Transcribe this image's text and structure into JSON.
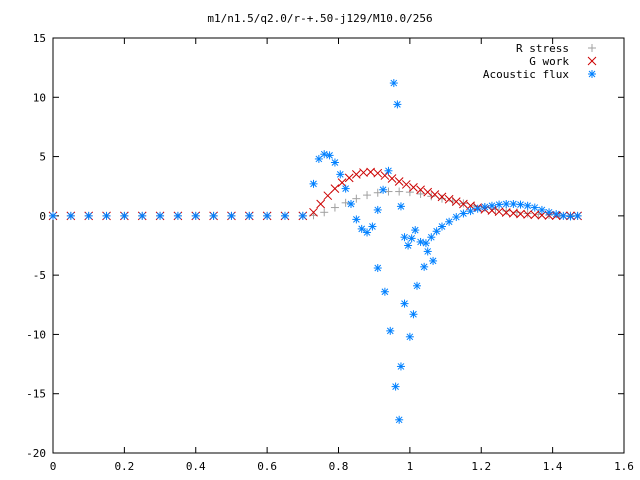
{
  "chart_data": {
    "type": "scatter",
    "title": "m1/n1.5/q2.0/r-+.50-j129/M10.0/256",
    "xlabel": "",
    "ylabel": "",
    "xlim": [
      0,
      1.6
    ],
    "ylim": [
      -20,
      15
    ],
    "x_ticks": [
      "0",
      "0.2",
      "0.4",
      "0.6",
      "0.8",
      "1",
      "1.2",
      "1.4",
      "1.6"
    ],
    "y_ticks": [
      "15",
      "10",
      "5",
      "0",
      "-5",
      "-10",
      "-15",
      "-20"
    ],
    "grid": false,
    "legend_position": "top-right",
    "series": [
      {
        "name": "R stress",
        "marker": "plus",
        "color": "#a0a0a0",
        "x": [
          0.0,
          0.05,
          0.1,
          0.15,
          0.2,
          0.25,
          0.3,
          0.35,
          0.4,
          0.45,
          0.5,
          0.55,
          0.6,
          0.65,
          0.7,
          0.73,
          0.76,
          0.79,
          0.82,
          0.85,
          0.88,
          0.91,
          0.94,
          0.97,
          1.0,
          1.03,
          1.06,
          1.09,
          1.12,
          1.15,
          1.18,
          1.21,
          1.24,
          1.27,
          1.3,
          1.33,
          1.36,
          1.39,
          1.42,
          1.45,
          1.47
        ],
        "y": [
          0,
          0,
          0,
          0,
          0,
          0,
          0,
          0,
          0,
          0,
          0,
          0,
          0,
          0,
          0,
          0.05,
          0.3,
          0.7,
          1.1,
          1.45,
          1.75,
          1.95,
          2.05,
          2.05,
          2.0,
          1.85,
          1.65,
          1.45,
          1.25,
          1.05,
          0.85,
          0.7,
          0.55,
          0.42,
          0.3,
          0.2,
          0.12,
          0.07,
          0.04,
          0.02,
          0.0
        ]
      },
      {
        "name": "G work",
        "marker": "cross",
        "color": "#cc0000",
        "x": [
          0.0,
          0.05,
          0.1,
          0.15,
          0.2,
          0.25,
          0.3,
          0.35,
          0.4,
          0.45,
          0.5,
          0.55,
          0.6,
          0.65,
          0.7,
          0.73,
          0.75,
          0.77,
          0.79,
          0.81,
          0.83,
          0.85,
          0.87,
          0.89,
          0.91,
          0.93,
          0.95,
          0.97,
          0.99,
          1.01,
          1.03,
          1.05,
          1.07,
          1.09,
          1.11,
          1.13,
          1.15,
          1.17,
          1.19,
          1.21,
          1.23,
          1.25,
          1.27,
          1.29,
          1.31,
          1.33,
          1.35,
          1.37,
          1.39,
          1.41,
          1.43,
          1.45,
          1.47
        ],
        "y": [
          0,
          0,
          0,
          0,
          0,
          0,
          0,
          0,
          0,
          0,
          0,
          0,
          0,
          0,
          0,
          0.3,
          1.0,
          1.7,
          2.3,
          2.8,
          3.2,
          3.5,
          3.65,
          3.7,
          3.6,
          3.4,
          3.15,
          2.9,
          2.65,
          2.4,
          2.2,
          2.0,
          1.8,
          1.6,
          1.4,
          1.2,
          1.0,
          0.85,
          0.7,
          0.55,
          0.45,
          0.35,
          0.28,
          0.22,
          0.16,
          0.12,
          0.08,
          0.05,
          0.03,
          0.02,
          0.01,
          0.0,
          0.0
        ]
      },
      {
        "name": "Acoustic flux",
        "marker": "star",
        "color": "#0080ff",
        "x": [
          0.0,
          0.05,
          0.1,
          0.15,
          0.2,
          0.25,
          0.3,
          0.35,
          0.4,
          0.45,
          0.5,
          0.55,
          0.6,
          0.65,
          0.7,
          0.73,
          0.745,
          0.76,
          0.775,
          0.79,
          0.805,
          0.82,
          0.835,
          0.85,
          0.865,
          0.88,
          0.895,
          0.91,
          0.925,
          0.94,
          0.955,
          0.965,
          0.975,
          0.985,
          0.995,
          1.005,
          1.015,
          1.03,
          1.045,
          1.06,
          1.075,
          1.09,
          1.11,
          1.13,
          1.15,
          1.17,
          1.19,
          1.21,
          1.23,
          1.25,
          1.27,
          1.29,
          1.31,
          1.33,
          1.35,
          1.37,
          1.39,
          1.41,
          1.43,
          1.45,
          1.47,
          0.91,
          0.93,
          0.945,
          0.96,
          0.97,
          0.975,
          0.985,
          1.0,
          1.01,
          1.02,
          1.04,
          1.05,
          1.065
        ],
        "y": [
          0,
          0,
          0,
          0,
          0,
          0,
          0,
          0,
          0,
          0,
          0,
          0,
          0,
          0,
          0,
          2.7,
          4.8,
          5.2,
          5.1,
          4.5,
          3.5,
          2.3,
          1.0,
          -0.3,
          -1.1,
          -1.4,
          -0.9,
          0.5,
          2.2,
          3.8,
          11.2,
          9.4,
          0.8,
          -1.8,
          -2.5,
          -1.9,
          -1.2,
          -2.2,
          -2.3,
          -1.8,
          -1.3,
          -0.9,
          -0.5,
          -0.1,
          0.2,
          0.4,
          0.6,
          0.75,
          0.85,
          0.95,
          1.0,
          1.0,
          0.95,
          0.85,
          0.7,
          0.5,
          0.3,
          0.15,
          0.0,
          -0.05,
          0.0,
          -4.4,
          -6.4,
          -9.7,
          -14.4,
          -17.2,
          -12.7,
          -7.4,
          -10.2,
          -8.3,
          -5.9,
          -4.3,
          -3.0,
          -3.8
        ]
      }
    ]
  }
}
